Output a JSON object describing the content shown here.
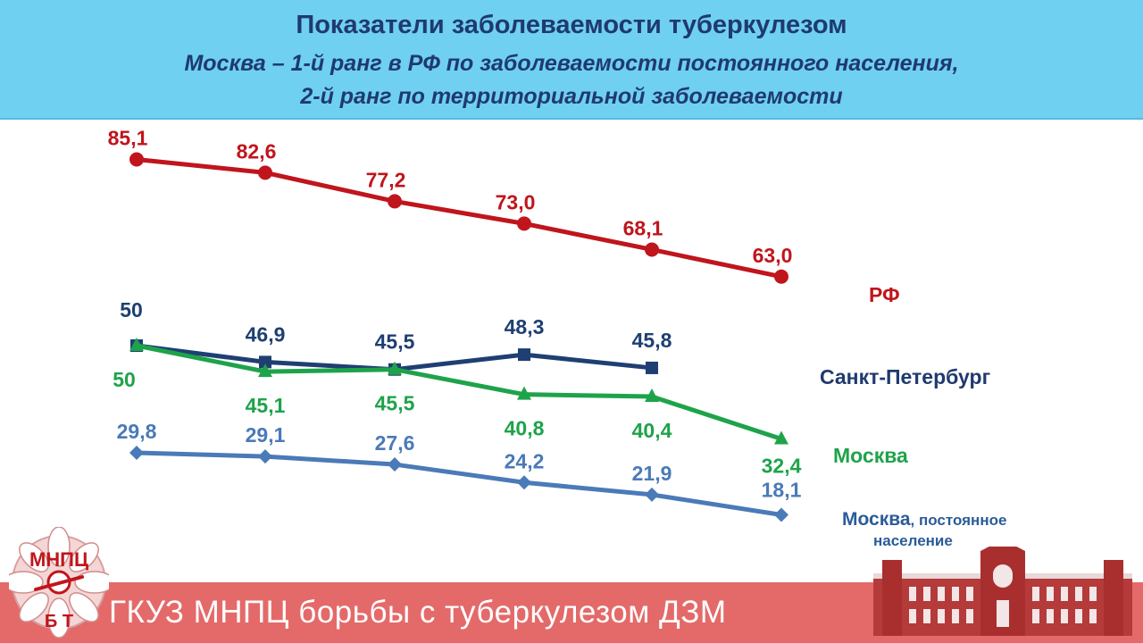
{
  "header": {
    "title": "Показатели заболеваемости туберкулезом",
    "subtitle_line1": "Москва – 1-й ранг в РФ по заболеваемости постоянного населения,",
    "subtitle_line2": "2-й ранг по территориальной заболеваемости"
  },
  "footer": {
    "org_name": "ГКУЗ МНПЦ борьбы с туберкулезом ДЗМ",
    "logo_text": "МНПЦ БТ"
  },
  "legend": {
    "rf": "РФ",
    "spb": "Санкт-Петербург",
    "moscow": "Москва",
    "moscow_perm_main": "Москва",
    "moscow_perm_suffix": ", постоянное",
    "moscow_perm_line2": "население"
  },
  "chart_data": {
    "type": "line",
    "title": "Показатели заболеваемости туберкулезом",
    "ylim": [
      15,
      90
    ],
    "grid": false,
    "series": [
      {
        "name": "РФ",
        "color": "#c0151c",
        "marker": "circle",
        "values": [
          85.1,
          82.6,
          77.2,
          73.0,
          68.1,
          63.0
        ],
        "labels": [
          "85,1",
          "82,6",
          "77,2",
          "73,0",
          "68,1",
          "63,0"
        ]
      },
      {
        "name": "Санкт-Петербург",
        "color": "#1f3f72",
        "marker": "square",
        "values": [
          50,
          46.9,
          45.5,
          48.3,
          45.8
        ],
        "labels": [
          "50",
          "46,9",
          "45,5",
          "48,3",
          "45,8"
        ]
      },
      {
        "name": "Москва",
        "color": "#1ea34a",
        "marker": "triangle",
        "values": [
          50,
          45.1,
          45.5,
          40.8,
          40.4,
          32.4
        ],
        "labels": [
          "50",
          "45,1",
          "45,5",
          "40,8",
          "40,4",
          "32,4"
        ]
      },
      {
        "name": "Москва, постоянное население",
        "color": "#4a7ab8",
        "marker": "diamond",
        "values": [
          29.8,
          29.1,
          27.6,
          24.2,
          21.9,
          18.1
        ],
        "labels": [
          "29,8",
          "29,1",
          "27,6",
          "24,2",
          "21,9",
          "18,1"
        ]
      }
    ]
  }
}
